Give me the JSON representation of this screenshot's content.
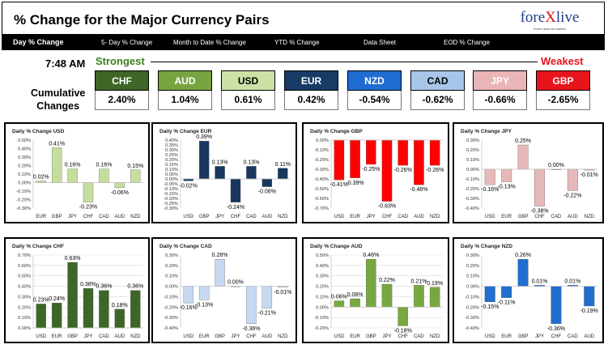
{
  "title": "% Change for the Major Currency Pairs",
  "logo": {
    "text_a": "fore",
    "text_b": "X",
    "text_c": "live",
    "tagline": "Forex news for traders"
  },
  "nav": [
    "Day % Change",
    "5- Day % Change",
    "Month to Date % Change",
    "YTD % Change",
    "Data Sheet",
    "EOD % Change"
  ],
  "time": "7:48 AM",
  "strongest_label": "Strongest",
  "weakest_label": "Weakest",
  "cumulative_label_1": "Cumulative",
  "cumulative_label_2": "Changes",
  "cumulative": [
    {
      "name": "CHF",
      "value": "2.40%",
      "color": "#3e6627",
      "dark": true
    },
    {
      "name": "AUD",
      "value": "1.04%",
      "color": "#77a43f",
      "dark": true
    },
    {
      "name": "USD",
      "value": "0.61%",
      "color": "#cde1a6",
      "dark": false
    },
    {
      "name": "EUR",
      "value": "0.42%",
      "color": "#183b66",
      "dark": true
    },
    {
      "name": "NZD",
      "value": "-0.54%",
      "color": "#1f6cd0",
      "dark": true
    },
    {
      "name": "CAD",
      "value": "-0.62%",
      "color": "#a8c6ea",
      "dark": false
    },
    {
      "name": "JPY",
      "value": "-0.66%",
      "color": "#eab5b5",
      "dark": true
    },
    {
      "name": "GBP",
      "value": "-2.65%",
      "color": "#e8141c",
      "dark": true
    }
  ],
  "colors": {
    "USD": "#c5de9c",
    "EUR": "#17375e",
    "GBP": "#ff0000",
    "JPY": "#e6b8b7",
    "CHF": "#3e6627",
    "CAD": "#c6d9f1",
    "AUD": "#77a83f",
    "NZD": "#1f6ed0"
  },
  "chart_data": [
    {
      "type": "bar",
      "title": "Daily % Change USD",
      "categories": [
        "EUR",
        "GBP",
        "JPY",
        "CHF",
        "CAD",
        "AUD",
        "NZD"
      ],
      "values": [
        0.02,
        0.41,
        0.16,
        -0.23,
        0.16,
        -0.06,
        0.15
      ],
      "labels": [
        "0.02%",
        "0.41%",
        "0.16%",
        "-0.23%",
        "0.16%",
        "-0.06%",
        "0.15%"
      ],
      "ylim": [
        -0.3,
        0.5
      ],
      "step": 0.05,
      "ticks": [
        "-0.30%",
        "-0.25%",
        "-0.20%",
        "-0.15%",
        "-0.10%",
        "-0.05%",
        "0.00%",
        "0.05%",
        "0.10%",
        "0.15%",
        "0.20%",
        "0.25%",
        "0.30%",
        "0.35%",
        "0.40%",
        "0.45%",
        "0.50%"
      ],
      "tick_every": 2,
      "color": "USD",
      "grid": false
    },
    {
      "type": "bar",
      "title": "Daily % Change EUR",
      "categories": [
        "USD",
        "GBP",
        "JPY",
        "CHF",
        "CAD",
        "AUD",
        "NZD"
      ],
      "values": [
        -0.02,
        0.39,
        0.13,
        -0.24,
        0.13,
        -0.08,
        0.11
      ],
      "labels": [
        "-0.02%",
        "0.39%",
        "0.13%",
        "-0.24%",
        "0.13%",
        "-0.08%",
        "0.11%"
      ],
      "ylim": [
        -0.3,
        0.4
      ],
      "step": 0.05,
      "ticks": [
        "-0.30%",
        "-0.25%",
        "-0.20%",
        "-0.15%",
        "-0.10%",
        "-0.05%",
        "0.00%",
        "0.05%",
        "0.10%",
        "0.15%",
        "0.20%",
        "0.25%",
        "0.30%",
        "0.35%",
        "0.40%"
      ],
      "tick_every": 1,
      "color": "EUR",
      "grid": false
    },
    {
      "type": "bar",
      "title": "Daily % Change GBP",
      "categories": [
        "USD",
        "EUR",
        "JPY",
        "CHF",
        "CAD",
        "AUD",
        "NZD"
      ],
      "values": [
        -0.41,
        -0.39,
        -0.25,
        -0.63,
        -0.26,
        -0.46,
        -0.26
      ],
      "labels": [
        "-0.41%",
        "-0.39%",
        "-0.25%",
        "-0.63%",
        "-0.26%",
        "-0.46%",
        "-0.26%"
      ],
      "ylim": [
        -0.7,
        0.0
      ],
      "step": 0.1,
      "ticks": [
        "-0.70%",
        "-0.60%",
        "-0.50%",
        "-0.40%",
        "-0.30%",
        "-0.20%",
        "-0.10%",
        "0.00%"
      ],
      "tick_every": 1,
      "color": "GBP",
      "grid": false
    },
    {
      "type": "bar",
      "title": "Daily % Change JPY",
      "categories": [
        "USD",
        "EUR",
        "GBP",
        "CHF",
        "CAD",
        "AUD",
        "NZD"
      ],
      "values": [
        -0.16,
        -0.13,
        0.25,
        -0.38,
        0.0,
        -0.22,
        -0.01
      ],
      "labels": [
        "-0.16%",
        "-0.13%",
        "0.25%",
        "-0.38%",
        "0.00%",
        "-0.22%",
        "-0.01%"
      ],
      "ylim": [
        -0.4,
        0.3
      ],
      "step": 0.05,
      "ticks": [
        "-0.40%",
        "-0.35%",
        "-0.30%",
        "-0.25%",
        "-0.20%",
        "-0.15%",
        "-0.10%",
        "-0.05%",
        "0.00%",
        "0.05%",
        "0.10%",
        "0.15%",
        "0.20%",
        "0.25%",
        "0.30%"
      ],
      "tick_every": 2,
      "color": "JPY",
      "grid": false
    },
    {
      "type": "bar",
      "title": "Daily % Change CHF",
      "categories": [
        "USD",
        "EUR",
        "GBP",
        "JPY",
        "CAD",
        "AUD",
        "NZD"
      ],
      "values": [
        0.23,
        0.24,
        0.63,
        0.38,
        0.36,
        0.18,
        0.36
      ],
      "labels": [
        "0.23%",
        "0.24%",
        "0.63%",
        "0.38%",
        "0.36%",
        "0.18%",
        "0.36%"
      ],
      "ylim": [
        0.0,
        0.7
      ],
      "step": 0.1,
      "ticks": [
        "0.00%",
        "0.10%",
        "0.20%",
        "0.30%",
        "0.40%",
        "0.50%",
        "0.60%",
        "0.70%"
      ],
      "tick_every": 1,
      "color": "CHF",
      "grid": true
    },
    {
      "type": "bar",
      "title": "Daily % Change CAD",
      "categories": [
        "USD",
        "EUR",
        "GBP",
        "JPY",
        "CHF",
        "AUD",
        "NZD"
      ],
      "values": [
        -0.16,
        -0.13,
        0.26,
        0.0,
        -0.36,
        -0.21,
        -0.01
      ],
      "labels": [
        "-0.16%",
        "-0.13%",
        "0.26%",
        "0.00%",
        "-0.36%",
        "-0.21%",
        "-0.01%"
      ],
      "ylim": [
        -0.4,
        0.3
      ],
      "step": 0.05,
      "ticks": [
        "-0.40%",
        "-0.35%",
        "-0.30%",
        "-0.25%",
        "-0.20%",
        "-0.15%",
        "-0.10%",
        "-0.05%",
        "0.00%",
        "0.05%",
        "0.10%",
        "0.15%",
        "0.20%",
        "0.25%",
        "0.30%"
      ],
      "tick_every": 2,
      "color": "CAD",
      "grid": false
    },
    {
      "type": "bar",
      "title": "Daily % Change AUD",
      "categories": [
        "USD",
        "EUR",
        "GBP",
        "JPY",
        "CHF",
        "CAD",
        "NZD"
      ],
      "values": [
        0.06,
        0.08,
        0.46,
        0.22,
        -0.18,
        0.21,
        0.19
      ],
      "labels": [
        "0.06%",
        "0.08%",
        "0.46%",
        "0.22%",
        "-0.18%",
        "0.21%",
        "0.19%"
      ],
      "ylim": [
        -0.2,
        0.5
      ],
      "step": 0.1,
      "ticks": [
        "-0.20%",
        "-0.10%",
        "0.00%",
        "0.10%",
        "0.20%",
        "0.30%",
        "0.40%",
        "0.50%"
      ],
      "tick_every": 1,
      "color": "AUD",
      "grid": true
    },
    {
      "type": "bar",
      "title": "Daily % Change NZD",
      "categories": [
        "USD",
        "EUR",
        "GBP",
        "JPY",
        "CHF",
        "CAD",
        "AUD"
      ],
      "values": [
        -0.15,
        -0.11,
        0.26,
        0.01,
        -0.36,
        0.01,
        -0.19
      ],
      "labels": [
        "-0.15%",
        "-0.11%",
        "0.26%",
        "0.01%",
        "-0.36%",
        "0.01%",
        "-0.19%"
      ],
      "ylim": [
        -0.4,
        0.3
      ],
      "step": 0.05,
      "ticks": [
        "-0.40%",
        "-0.35%",
        "-0.30%",
        "-0.25%",
        "-0.20%",
        "-0.15%",
        "-0.10%",
        "-0.05%",
        "0.00%",
        "0.05%",
        "0.10%",
        "0.15%",
        "0.20%",
        "0.25%",
        "0.30%"
      ],
      "tick_every": 2,
      "color": "NZD",
      "grid": false
    }
  ]
}
